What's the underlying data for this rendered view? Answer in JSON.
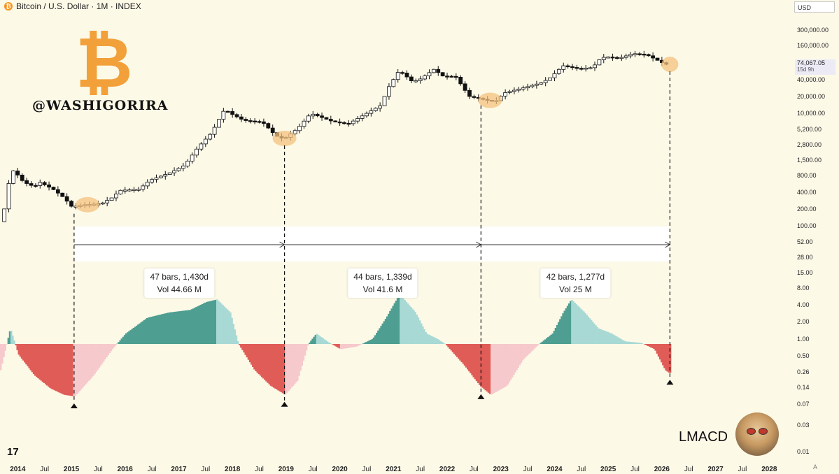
{
  "header": {
    "coin_symbol": "₿",
    "title": "Bitcoin / U.S. Dollar · 1M · INDEX"
  },
  "currency": "USD",
  "price_tag": {
    "price": "74,067.05",
    "countdown": "15d 9h"
  },
  "watermark": {
    "symbol": "₿",
    "handle": "@WASHIGORIRA"
  },
  "indicator_name": "LMACD",
  "tv_logo": "17",
  "auto_label": "A",
  "colors": {
    "background": "#fdf9e7",
    "candle_up": "#ffffff",
    "candle_down": "#111111",
    "hist_pos_strong": "#4e9e92",
    "hist_pos_weak": "#a8d9d4",
    "hist_neg_strong": "#e05c57",
    "hist_neg_weak": "#f6c9cc",
    "highlight": "#f3c27d"
  },
  "chart_data": {
    "type": "candlestick",
    "title": "Bitcoin / U.S. Dollar · 1M · INDEX",
    "yscale": "log",
    "ylim": [
      0.01,
      600000
    ],
    "x_range": [
      2013.67,
      2028.4
    ],
    "y_ticks": [
      {
        "label": "300,000.00",
        "value": 300000
      },
      {
        "label": "160,000.00",
        "value": 160000
      },
      {
        "label": "40,000.00",
        "value": 40000
      },
      {
        "label": "20,000.00",
        "value": 20000
      },
      {
        "label": "10,000.00",
        "value": 10000
      },
      {
        "label": "5,200.00",
        "value": 5200
      },
      {
        "label": "2,800.00",
        "value": 2800
      },
      {
        "label": "1,500.00",
        "value": 1500
      },
      {
        "label": "800.00",
        "value": 800
      },
      {
        "label": "400.00",
        "value": 400
      },
      {
        "label": "200.00",
        "value": 200
      },
      {
        "label": "100.00",
        "value": 100
      },
      {
        "label": "52.00",
        "value": 52
      },
      {
        "label": "28.00",
        "value": 28
      },
      {
        "label": "15.00",
        "value": 15
      },
      {
        "label": "8.00",
        "value": 8
      },
      {
        "label": "4.00",
        "value": 4
      },
      {
        "label": "2.00",
        "value": 2
      },
      {
        "label": "1.00",
        "value": 1
      },
      {
        "label": "0.50",
        "value": 0.5
      },
      {
        "label": "0.26",
        "value": 0.26
      },
      {
        "label": "0.14",
        "value": 0.14
      },
      {
        "label": "0.07",
        "value": 0.07
      },
      {
        "label": "0.03",
        "value": 0.03
      },
      {
        "label": "0.01",
        "value": 0.01
      }
    ],
    "x_ticks": [
      {
        "label": "2014",
        "value": 2014.0,
        "bold": true
      },
      {
        "label": "Jul",
        "value": 2014.5
      },
      {
        "label": "2015",
        "value": 2015.0,
        "bold": true
      },
      {
        "label": "Jul",
        "value": 2015.5
      },
      {
        "label": "2016",
        "value": 2016.0,
        "bold": true
      },
      {
        "label": "Jul",
        "value": 2016.5
      },
      {
        "label": "2017",
        "value": 2017.0,
        "bold": true
      },
      {
        "label": "Jul",
        "value": 2017.5
      },
      {
        "label": "2018",
        "value": 2018.0,
        "bold": true
      },
      {
        "label": "Jul",
        "value": 2018.5
      },
      {
        "label": "2019",
        "value": 2019.0,
        "bold": true
      },
      {
        "label": "Jul",
        "value": 2019.5
      },
      {
        "label": "2020",
        "value": 2020.0,
        "bold": true
      },
      {
        "label": "Jul",
        "value": 2020.5
      },
      {
        "label": "2021",
        "value": 2021.0,
        "bold": true
      },
      {
        "label": "Jul",
        "value": 2021.5
      },
      {
        "label": "2022",
        "value": 2022.0,
        "bold": true
      },
      {
        "label": "Jul",
        "value": 2022.5
      },
      {
        "label": "2023",
        "value": 2023.0,
        "bold": true
      },
      {
        "label": "Jul",
        "value": 2023.5
      },
      {
        "label": "2024",
        "value": 2024.0,
        "bold": true
      },
      {
        "label": "Jul",
        "value": 2024.5
      },
      {
        "label": "2025",
        "value": 2025.0,
        "bold": true
      },
      {
        "label": "Jul",
        "value": 2025.5
      },
      {
        "label": "2026",
        "value": 2026.0,
        "bold": true
      },
      {
        "label": "Jul",
        "value": 2026.5
      },
      {
        "label": "2027",
        "value": 2027.0,
        "bold": true
      },
      {
        "label": "Jul",
        "value": 2027.5
      },
      {
        "label": "2028",
        "value": 2028.0,
        "bold": true
      }
    ],
    "price_anchors": [
      [
        2013.75,
        120
      ],
      [
        2013.92,
        1000
      ],
      [
        2014.0,
        900
      ],
      [
        2014.15,
        600
      ],
      [
        2014.35,
        500
      ],
      [
        2014.45,
        600
      ],
      [
        2014.7,
        450
      ],
      [
        2014.9,
        320
      ],
      [
        2015.05,
        220
      ],
      [
        2015.3,
        240
      ],
      [
        2015.6,
        250
      ],
      [
        2015.8,
        320
      ],
      [
        2015.95,
        430
      ],
      [
        2016.3,
        450
      ],
      [
        2016.5,
        650
      ],
      [
        2016.9,
        900
      ],
      [
        2017.15,
        1200
      ],
      [
        2017.4,
        2500
      ],
      [
        2017.65,
        4500
      ],
      [
        2017.9,
        12000
      ],
      [
        2018.0,
        10000
      ],
      [
        2018.25,
        7500
      ],
      [
        2018.6,
        7000
      ],
      [
        2018.85,
        4000
      ],
      [
        2019.0,
        3500
      ],
      [
        2019.25,
        5300
      ],
      [
        2019.5,
        10000
      ],
      [
        2019.9,
        7200
      ],
      [
        2020.2,
        6500
      ],
      [
        2020.5,
        9500
      ],
      [
        2020.8,
        13800
      ],
      [
        2020.95,
        29000
      ],
      [
        2021.15,
        58000
      ],
      [
        2021.4,
        36000
      ],
      [
        2021.55,
        41000
      ],
      [
        2021.8,
        61000
      ],
      [
        2021.95,
        46000
      ],
      [
        2022.2,
        45000
      ],
      [
        2022.45,
        20000
      ],
      [
        2022.8,
        17000
      ],
      [
        2022.95,
        16500
      ],
      [
        2023.1,
        23000
      ],
      [
        2023.5,
        29000
      ],
      [
        2023.8,
        35000
      ],
      [
        2023.95,
        42000
      ],
      [
        2024.2,
        70000
      ],
      [
        2024.5,
        62000
      ],
      [
        2024.75,
        65000
      ],
      [
        2024.9,
        95000
      ],
      [
        2025.0,
        101000
      ],
      [
        2025.25,
        95000
      ],
      [
        2025.5,
        115000
      ],
      [
        2025.75,
        110000
      ],
      [
        2025.95,
        88000
      ],
      [
        2026.1,
        74067
      ]
    ],
    "macd_anchors": [
      [
        2013.67,
        -0.5
      ],
      [
        2013.85,
        0.3
      ],
      [
        2014.0,
        -0.2
      ],
      [
        2014.3,
        -0.6
      ],
      [
        2014.6,
        -0.85
      ],
      [
        2014.85,
        -0.97
      ],
      [
        2015.05,
        -1.0
      ],
      [
        2015.4,
        -0.6
      ],
      [
        2015.75,
        -0.1
      ],
      [
        2016.0,
        0.2
      ],
      [
        2016.4,
        0.5
      ],
      [
        2016.8,
        0.6
      ],
      [
        2017.2,
        0.65
      ],
      [
        2017.5,
        0.8
      ],
      [
        2017.7,
        0.85
      ],
      [
        2017.95,
        0.6
      ],
      [
        2018.1,
        0.0
      ],
      [
        2018.4,
        -0.5
      ],
      [
        2018.7,
        -0.8
      ],
      [
        2018.97,
        -0.97
      ],
      [
        2019.2,
        -0.7
      ],
      [
        2019.4,
        0.0
      ],
      [
        2019.55,
        0.2
      ],
      [
        2019.75,
        0.05
      ],
      [
        2020.0,
        -0.1
      ],
      [
        2020.3,
        -0.05
      ],
      [
        2020.6,
        0.1
      ],
      [
        2020.85,
        0.5
      ],
      [
        2021.1,
        0.95
      ],
      [
        2021.4,
        0.6
      ],
      [
        2021.6,
        0.2
      ],
      [
        2021.8,
        0.1
      ],
      [
        2021.95,
        0.0
      ],
      [
        2022.3,
        -0.4
      ],
      [
        2022.6,
        -0.8
      ],
      [
        2022.8,
        -0.97
      ],
      [
        2023.1,
        -0.8
      ],
      [
        2023.4,
        -0.3
      ],
      [
        2023.7,
        0.0
      ],
      [
        2023.95,
        0.2
      ],
      [
        2024.15,
        0.6
      ],
      [
        2024.3,
        0.85
      ],
      [
        2024.55,
        0.6
      ],
      [
        2024.8,
        0.3
      ],
      [
        2025.05,
        0.2
      ],
      [
        2025.3,
        0.05
      ],
      [
        2025.6,
        0.02
      ],
      [
        2025.85,
        -0.1
      ],
      [
        2026.05,
        -0.5
      ],
      [
        2026.12,
        -0.55
      ]
    ],
    "pivots": [
      {
        "x": 2015.05,
        "bars": "47 bars, 1,430d",
        "vol": "Vol 44.66 M"
      },
      {
        "x": 2018.97,
        "bars": "44 bars, 1,339d",
        "vol": "Vol 41.6 M"
      },
      {
        "x": 2022.63,
        "bars": "42 bars, 1,277d",
        "vol": "Vol 25 M"
      },
      {
        "x": 2026.15
      }
    ],
    "highlights": [
      2015.3,
      2018.97,
      2022.8,
      2026.15
    ]
  }
}
